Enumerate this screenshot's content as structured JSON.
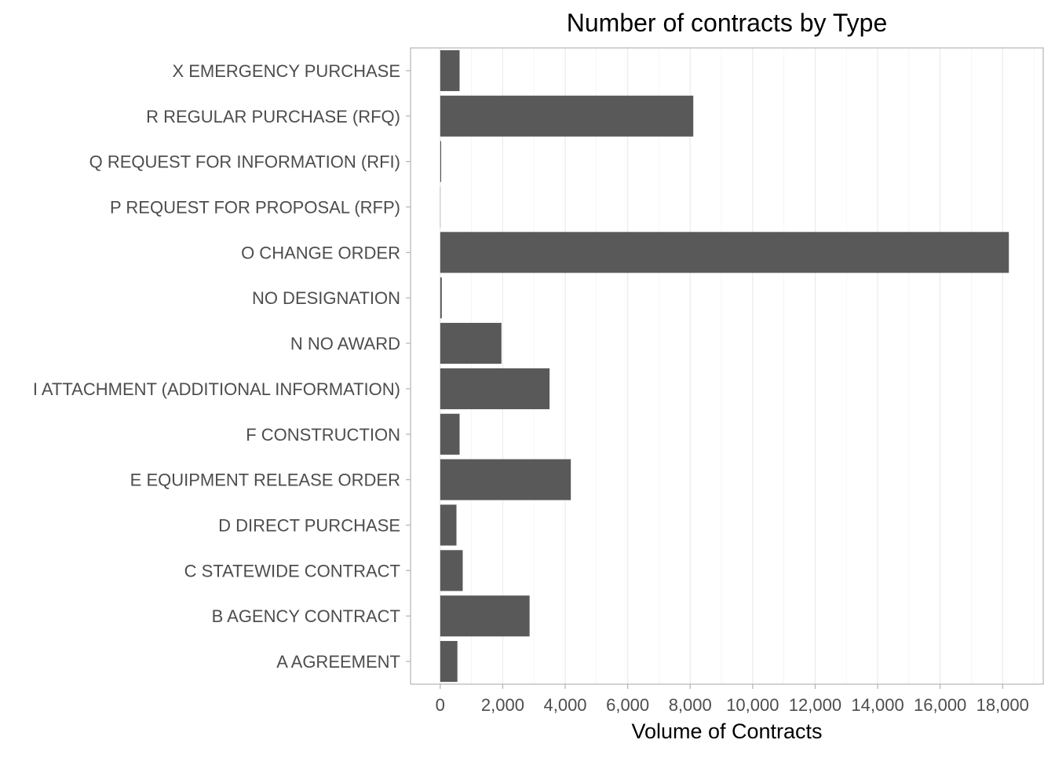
{
  "chart_data": {
    "type": "bar",
    "orientation": "horizontal",
    "title": "Number of contracts by Type",
    "xlabel": "Volume of Contracts",
    "ylabel": "",
    "categories": [
      "X EMERGENCY PURCHASE",
      "R REGULAR PURCHASE (RFQ)",
      "Q REQUEST FOR INFORMATION (RFI)",
      "P REQUEST FOR PROPOSAL (RFP)",
      "O CHANGE ORDER",
      "NO DESIGNATION",
      "N NO AWARD",
      "I ATTACHMENT (ADDITIONAL INFORMATION)",
      "F CONSTRUCTION",
      "E EQUIPMENT RELEASE ORDER",
      "D DIRECT PURCHASE",
      "C STATEWIDE CONTRACT",
      "B AGENCY CONTRACT",
      "A AGREEMENT"
    ],
    "values": [
      620,
      8100,
      30,
      2,
      18200,
      50,
      1960,
      3500,
      620,
      4180,
      520,
      720,
      2860,
      550
    ],
    "xlim": [
      -950,
      19300
    ],
    "xticks": [
      0,
      2000,
      4000,
      6000,
      8000,
      10000,
      12000,
      14000,
      16000,
      18000
    ],
    "xtick_labels": [
      "0",
      "2,000",
      "4,000",
      "6,000",
      "8,000",
      "10,000",
      "12,000",
      "14,000",
      "16,000",
      "18,000"
    ],
    "grid": true,
    "bar_color": "#595959",
    "grid_color": "#ebebeb",
    "panel_border_color": "#b3b3b3",
    "legend": "none"
  }
}
